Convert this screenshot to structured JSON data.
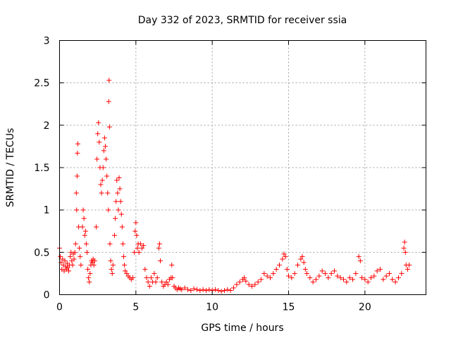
{
  "chart_data": {
    "type": "scatter",
    "title": "Day 332 of 2023, SRMTID for receiver ssia",
    "xlabel": "GPS time / hours",
    "ylabel": "SRMTID / TECUs",
    "xlim": [
      0,
      24
    ],
    "ylim": [
      0,
      3
    ],
    "xticks": [
      0,
      5,
      10,
      15,
      20
    ],
    "xtick_labels": [
      "0",
      "5",
      "10",
      "15",
      "20"
    ],
    "yticks": [
      0,
      0.5,
      1,
      1.5,
      2,
      2.5,
      3
    ],
    "ytick_labels": [
      "0",
      "0.5",
      "1",
      "1.5",
      "2",
      "2.5",
      "3"
    ],
    "grid": true,
    "marker": "+",
    "series": [
      {
        "name": "SRMTID",
        "color": "#ff0000",
        "points": [
          [
            0.0,
            0.55
          ],
          [
            0.05,
            0.45
          ],
          [
            0.1,
            0.38
          ],
          [
            0.15,
            0.3
          ],
          [
            0.2,
            0.42
          ],
          [
            0.25,
            0.35
          ],
          [
            0.3,
            0.28
          ],
          [
            0.35,
            0.4
          ],
          [
            0.4,
            0.33
          ],
          [
            0.45,
            0.3
          ],
          [
            0.5,
            0.37
          ],
          [
            0.55,
            0.32
          ],
          [
            0.6,
            0.28
          ],
          [
            0.65,
            0.35
          ],
          [
            0.7,
            0.45
          ],
          [
            0.75,
            0.5
          ],
          [
            0.8,
            0.4
          ],
          [
            0.85,
            0.35
          ],
          [
            0.9,
            0.48
          ],
          [
            0.95,
            0.42
          ],
          [
            1.0,
            0.5
          ],
          [
            1.05,
            0.6
          ],
          [
            1.1,
            1.2
          ],
          [
            1.12,
            1.0
          ],
          [
            1.15,
            1.4
          ],
          [
            1.17,
            1.67
          ],
          [
            1.2,
            1.78
          ],
          [
            1.25,
            0.8
          ],
          [
            1.3,
            0.55
          ],
          [
            1.35,
            0.45
          ],
          [
            1.4,
            0.35
          ],
          [
            1.5,
            0.8
          ],
          [
            1.55,
            1.0
          ],
          [
            1.6,
            0.9
          ],
          [
            1.65,
            0.7
          ],
          [
            1.7,
            0.75
          ],
          [
            1.75,
            0.6
          ],
          [
            1.8,
            0.5
          ],
          [
            1.85,
            0.3
          ],
          [
            1.9,
            0.2
          ],
          [
            1.95,
            0.15
          ],
          [
            2.0,
            0.25
          ],
          [
            2.05,
            0.35
          ],
          [
            2.1,
            0.4
          ],
          [
            2.15,
            0.38
          ],
          [
            2.2,
            0.42
          ],
          [
            2.25,
            0.35
          ],
          [
            2.3,
            0.4
          ],
          [
            2.4,
            0.8
          ],
          [
            2.45,
            1.6
          ],
          [
            2.5,
            1.9
          ],
          [
            2.55,
            2.03
          ],
          [
            2.6,
            1.8
          ],
          [
            2.65,
            1.5
          ],
          [
            2.7,
            1.3
          ],
          [
            2.75,
            1.2
          ],
          [
            2.8,
            1.35
          ],
          [
            2.85,
            1.5
          ],
          [
            2.9,
            1.7
          ],
          [
            2.95,
            1.85
          ],
          [
            3.0,
            1.75
          ],
          [
            3.05,
            1.6
          ],
          [
            3.1,
            1.4
          ],
          [
            3.15,
            1.2
          ],
          [
            3.2,
            1.0
          ],
          [
            3.22,
            2.28
          ],
          [
            3.24,
            2.53
          ],
          [
            3.27,
            1.98
          ],
          [
            3.3,
            0.6
          ],
          [
            3.35,
            0.4
          ],
          [
            3.4,
            0.3
          ],
          [
            3.45,
            0.25
          ],
          [
            3.5,
            0.35
          ],
          [
            3.6,
            0.7
          ],
          [
            3.65,
            0.9
          ],
          [
            3.7,
            1.1
          ],
          [
            3.75,
            1.35
          ],
          [
            3.8,
            1.2
          ],
          [
            3.85,
            1.0
          ],
          [
            3.9,
            1.38
          ],
          [
            3.95,
            1.25
          ],
          [
            4.0,
            1.1
          ],
          [
            4.05,
            0.95
          ],
          [
            4.1,
            0.8
          ],
          [
            4.15,
            0.6
          ],
          [
            4.2,
            0.45
          ],
          [
            4.25,
            0.35
          ],
          [
            4.3,
            0.28
          ],
          [
            4.4,
            0.25
          ],
          [
            4.5,
            0.22
          ],
          [
            4.6,
            0.2
          ],
          [
            4.7,
            0.18
          ],
          [
            4.8,
            0.2
          ],
          [
            4.9,
            0.5
          ],
          [
            4.95,
            0.75
          ],
          [
            5.0,
            0.85
          ],
          [
            5.05,
            0.7
          ],
          [
            5.1,
            0.55
          ],
          [
            5.15,
            0.6
          ],
          [
            5.2,
            0.5
          ],
          [
            5.3,
            0.6
          ],
          [
            5.4,
            0.55
          ],
          [
            5.5,
            0.58
          ],
          [
            5.6,
            0.3
          ],
          [
            5.7,
            0.2
          ],
          [
            5.8,
            0.15
          ],
          [
            5.9,
            0.1
          ],
          [
            6.0,
            0.2
          ],
          [
            6.1,
            0.15
          ],
          [
            6.2,
            0.25
          ],
          [
            6.3,
            0.15
          ],
          [
            6.4,
            0.2
          ],
          [
            6.5,
            0.55
          ],
          [
            6.55,
            0.6
          ],
          [
            6.6,
            0.4
          ],
          [
            6.7,
            0.15
          ],
          [
            6.8,
            0.1
          ],
          [
            6.9,
            0.12
          ],
          [
            7.0,
            0.15
          ],
          [
            7.1,
            0.12
          ],
          [
            7.2,
            0.18
          ],
          [
            7.3,
            0.2
          ],
          [
            7.35,
            0.35
          ],
          [
            7.4,
            0.2
          ],
          [
            7.5,
            0.1
          ],
          [
            7.6,
            0.08
          ],
          [
            7.7,
            0.06
          ],
          [
            7.8,
            0.08
          ],
          [
            7.9,
            0.07
          ],
          [
            8.0,
            0.06
          ],
          [
            8.2,
            0.08
          ],
          [
            8.4,
            0.06
          ],
          [
            8.6,
            0.05
          ],
          [
            8.8,
            0.07
          ],
          [
            9.0,
            0.06
          ],
          [
            9.2,
            0.05
          ],
          [
            9.4,
            0.06
          ],
          [
            9.6,
            0.05
          ],
          [
            9.8,
            0.06
          ],
          [
            10.0,
            0.05
          ],
          [
            10.2,
            0.06
          ],
          [
            10.4,
            0.05
          ],
          [
            10.6,
            0.04
          ],
          [
            10.8,
            0.05
          ],
          [
            11.0,
            0.06
          ],
          [
            11.2,
            0.05
          ],
          [
            11.4,
            0.08
          ],
          [
            11.6,
            0.12
          ],
          [
            11.8,
            0.15
          ],
          [
            12.0,
            0.18
          ],
          [
            12.1,
            0.2
          ],
          [
            12.2,
            0.16
          ],
          [
            12.4,
            0.12
          ],
          [
            12.6,
            0.1
          ],
          [
            12.8,
            0.12
          ],
          [
            13.0,
            0.15
          ],
          [
            13.2,
            0.18
          ],
          [
            13.4,
            0.25
          ],
          [
            13.6,
            0.22
          ],
          [
            13.8,
            0.2
          ],
          [
            14.0,
            0.25
          ],
          [
            14.2,
            0.3
          ],
          [
            14.4,
            0.35
          ],
          [
            14.6,
            0.42
          ],
          [
            14.7,
            0.48
          ],
          [
            14.8,
            0.45
          ],
          [
            14.9,
            0.3
          ],
          [
            15.0,
            0.22
          ],
          [
            15.2,
            0.2
          ],
          [
            15.4,
            0.25
          ],
          [
            15.6,
            0.35
          ],
          [
            15.8,
            0.42
          ],
          [
            15.9,
            0.45
          ],
          [
            16.0,
            0.38
          ],
          [
            16.1,
            0.3
          ],
          [
            16.2,
            0.25
          ],
          [
            16.4,
            0.2
          ],
          [
            16.6,
            0.15
          ],
          [
            16.8,
            0.18
          ],
          [
            17.0,
            0.22
          ],
          [
            17.2,
            0.28
          ],
          [
            17.4,
            0.25
          ],
          [
            17.6,
            0.2
          ],
          [
            17.8,
            0.25
          ],
          [
            18.0,
            0.28
          ],
          [
            18.2,
            0.22
          ],
          [
            18.4,
            0.2
          ],
          [
            18.6,
            0.18
          ],
          [
            18.8,
            0.15
          ],
          [
            19.0,
            0.2
          ],
          [
            19.2,
            0.18
          ],
          [
            19.4,
            0.25
          ],
          [
            19.6,
            0.45
          ],
          [
            19.7,
            0.4
          ],
          [
            19.8,
            0.2
          ],
          [
            20.0,
            0.18
          ],
          [
            20.2,
            0.15
          ],
          [
            20.4,
            0.2
          ],
          [
            20.6,
            0.22
          ],
          [
            20.8,
            0.28
          ],
          [
            21.0,
            0.3
          ],
          [
            21.2,
            0.18
          ],
          [
            21.4,
            0.22
          ],
          [
            21.6,
            0.25
          ],
          [
            21.8,
            0.18
          ],
          [
            22.0,
            0.15
          ],
          [
            22.2,
            0.2
          ],
          [
            22.4,
            0.25
          ],
          [
            22.55,
            0.55
          ],
          [
            22.6,
            0.62
          ],
          [
            22.65,
            0.5
          ],
          [
            22.7,
            0.35
          ],
          [
            22.8,
            0.3
          ],
          [
            22.9,
            0.35
          ]
        ]
      }
    ]
  }
}
